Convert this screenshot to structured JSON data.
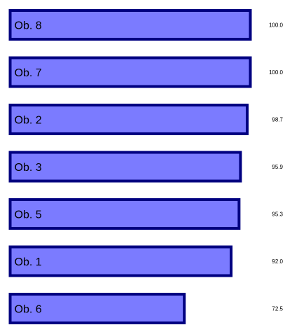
{
  "chart_data": {
    "type": "bar",
    "orientation": "horizontal",
    "categories": [
      "Ob. 8",
      "Ob. 7",
      "Ob. 2",
      "Ob. 3",
      "Ob. 5",
      "Ob. 1",
      "Ob. 6"
    ],
    "values": [
      100.0,
      100.0,
      98.7,
      95.9,
      95.3,
      92.0,
      72.5
    ],
    "value_labels": [
      "100.0",
      "100.0",
      "98.7",
      "95.9",
      "95.3",
      "92.0",
      "72.5"
    ],
    "bar_fill": "#7b7bff",
    "bar_stroke": "#000080",
    "label_color": "#000000",
    "grid": false,
    "legend": "none"
  }
}
